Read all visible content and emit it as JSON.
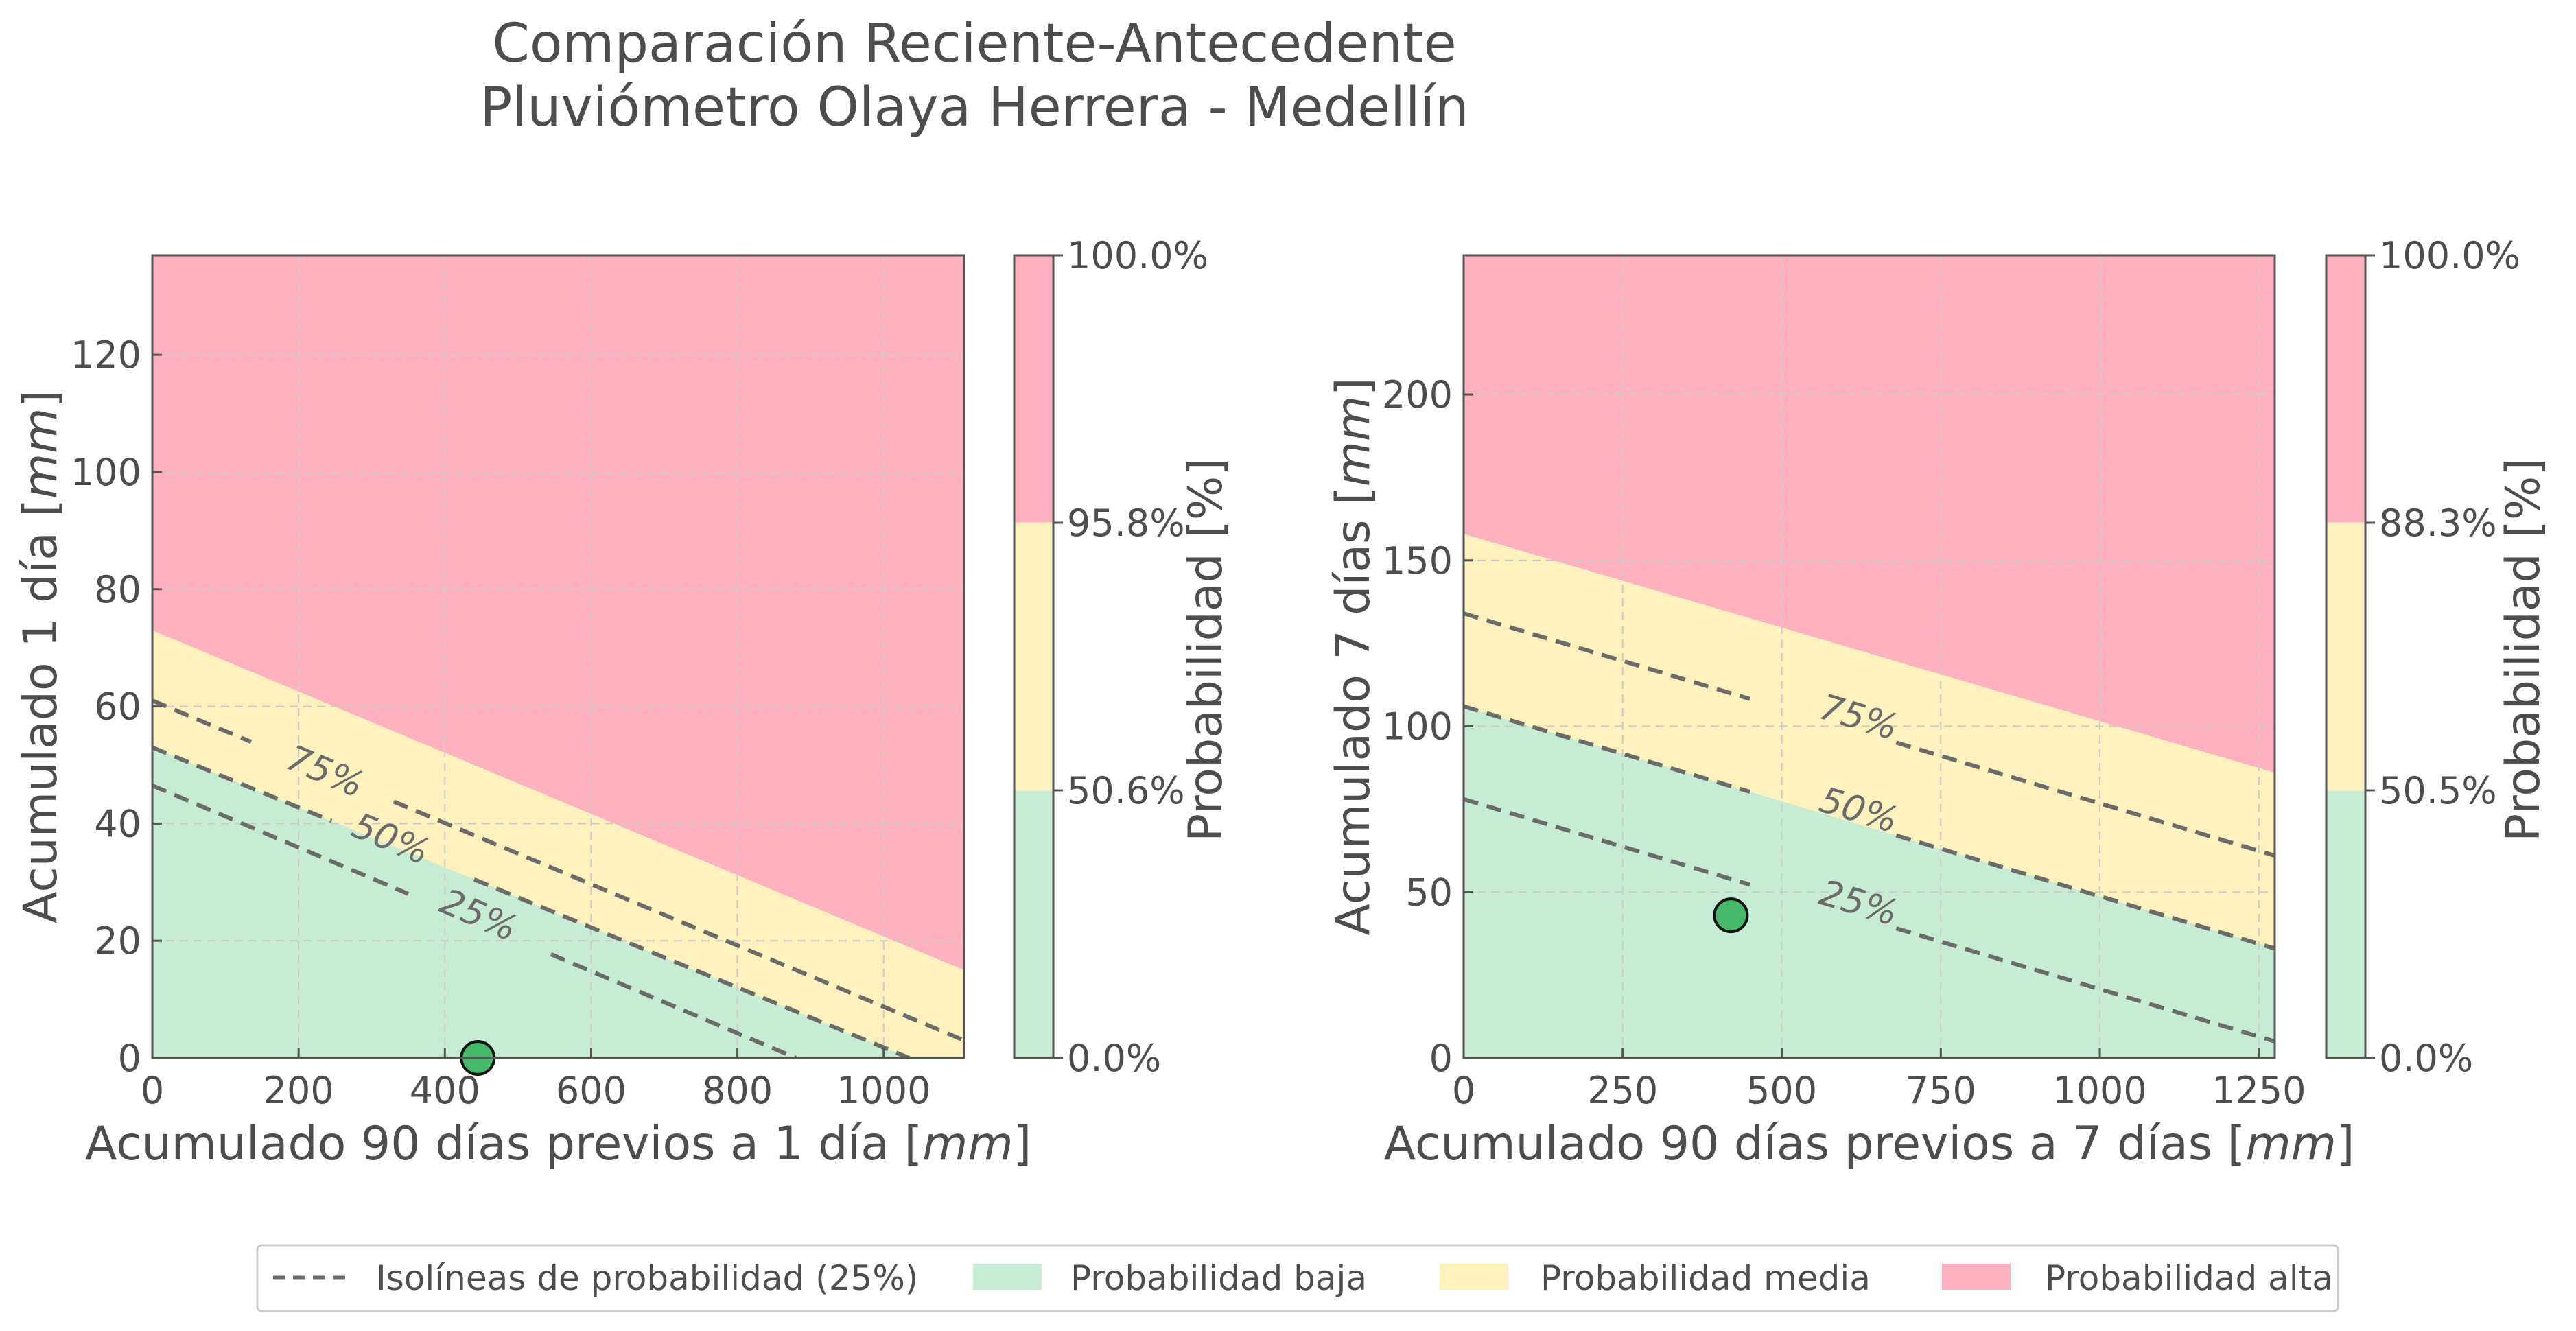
{
  "title_lines": [
    "Comparación Reciente-Antecedente",
    "Pluviómetro Olaya Herrera - Medellín"
  ],
  "colors": {
    "baja": "#c7ecd4",
    "media": "#fdf2bd",
    "alta": "#ffb1bf",
    "point": "#46b96b",
    "isoline": "#6b6b6b",
    "grid": "#cccccc",
    "frame": "#555555"
  },
  "legend": {
    "items": [
      {
        "type": "line",
        "label": "Isolíneas de probabilidad (25%)"
      },
      {
        "type": "patch",
        "color_key": "baja",
        "label": "Probabilidad baja"
      },
      {
        "type": "patch",
        "color_key": "media",
        "label": "Probabilidad media"
      },
      {
        "type": "patch",
        "color_key": "alta",
        "label": "Probabilidad alta"
      }
    ]
  },
  "chart_data": [
    {
      "type": "area",
      "xlabel": "Acumulado 90 días previos a 1 día",
      "xunit": "mm",
      "ylabel": "Acumulado 1 día",
      "yunit": "mm",
      "xlim": [
        0,
        1110
      ],
      "ylim": [
        0,
        137
      ],
      "xticks": [
        0,
        200,
        400,
        600,
        800,
        1000
      ],
      "yticks": [
        0,
        20,
        40,
        60,
        80,
        100,
        120
      ],
      "grid": true,
      "regions": [
        {
          "name": "Probabilidad baja",
          "color_key": "baja",
          "upper_boundary": [
            [
              0,
              53
            ],
            [
              1035,
              0
            ]
          ]
        },
        {
          "name": "Probabilidad media",
          "color_key": "media",
          "upper_boundary": [
            [
              0,
              73
            ],
            [
              1110,
              15
            ]
          ]
        },
        {
          "name": "Probabilidad alta",
          "color_key": "alta"
        }
      ],
      "isolines": [
        {
          "label": "75%",
          "line": [
            [
              0,
              61
            ],
            [
              1110,
              3
            ]
          ],
          "label_at": [
            235,
            48.5
          ],
          "gap": [
            135,
            330
          ]
        },
        {
          "label": "50%",
          "line": [
            [
              0,
              53
            ],
            [
              1035,
              0
            ]
          ],
          "label_at": [
            325,
            37
          ],
          "gap": [
            245,
            440
          ]
        },
        {
          "label": "25%",
          "line": [
            [
              0,
              46.5
            ],
            [
              880,
              0
            ]
          ],
          "label_at": [
            445,
            24
          ],
          "gap": [
            350,
            545
          ]
        }
      ],
      "points": [
        {
          "x": 445,
          "y": 0
        }
      ],
      "colorbar": {
        "label": "Probabilidad [%]",
        "ticks": [
          "0.0%",
          "50.6%",
          "95.8%",
          "100.0%"
        ],
        "segments": [
          {
            "from": 0,
            "to": 0.333,
            "color_key": "baja"
          },
          {
            "from": 0.333,
            "to": 0.667,
            "color_key": "media"
          },
          {
            "from": 0.667,
            "to": 1,
            "color_key": "alta"
          }
        ]
      }
    },
    {
      "type": "area",
      "xlabel": "Acumulado 90 días previos a 7 días",
      "xunit": "mm",
      "ylabel": "Acumulado 7 días",
      "yunit": "mm",
      "xlim": [
        0,
        1275
      ],
      "ylim": [
        0,
        242
      ],
      "xticks": [
        0,
        250,
        500,
        750,
        1000,
        1250
      ],
      "yticks": [
        0,
        50,
        100,
        150,
        200
      ],
      "grid": true,
      "regions": [
        {
          "name": "Probabilidad baja",
          "color_key": "baja",
          "upper_boundary": [
            [
              0,
              106
            ],
            [
              1275,
              33
            ]
          ]
        },
        {
          "name": "Probabilidad media",
          "color_key": "media",
          "upper_boundary": [
            [
              0,
              158
            ],
            [
              1275,
              86
            ]
          ]
        },
        {
          "name": "Probabilidad alta",
          "color_key": "alta"
        }
      ],
      "isolines": [
        {
          "label": "75%",
          "line": [
            [
              0,
              134
            ],
            [
              1275,
              61
            ]
          ],
          "label_at": [
            620,
            102
          ],
          "gap": [
            450,
            680
          ]
        },
        {
          "label": "50%",
          "line": [
            [
              0,
              106
            ],
            [
              1275,
              33
            ]
          ],
          "label_at": [
            620,
            74
          ],
          "gap": [
            450,
            680
          ]
        },
        {
          "label": "25%",
          "line": [
            [
              0,
              78
            ],
            [
              1275,
              5
            ]
          ],
          "label_at": [
            620,
            46
          ],
          "gap": [
            450,
            680
          ]
        }
      ],
      "points": [
        {
          "x": 420,
          "y": 43
        }
      ],
      "colorbar": {
        "label": "Probabilidad [%]",
        "ticks": [
          "0.0%",
          "50.5%",
          "88.3%",
          "100.0%"
        ],
        "segments": [
          {
            "from": 0,
            "to": 0.333,
            "color_key": "baja"
          },
          {
            "from": 0.333,
            "to": 0.667,
            "color_key": "media"
          },
          {
            "from": 0.667,
            "to": 1,
            "color_key": "alta"
          }
        ]
      }
    }
  ]
}
